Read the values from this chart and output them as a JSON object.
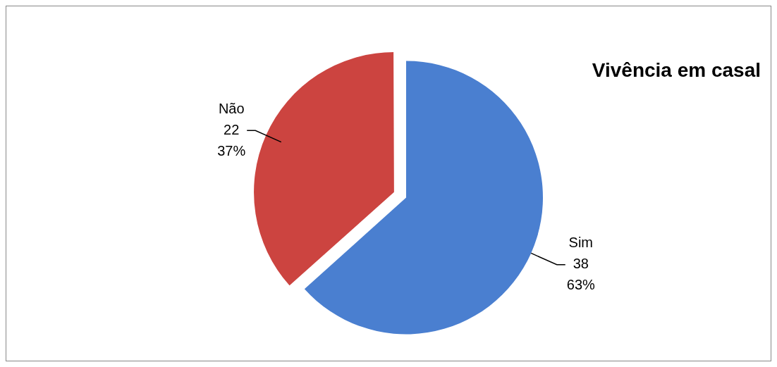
{
  "chart_data": {
    "type": "pie",
    "title": "Vivência em casal",
    "categories": [
      "Sim",
      "Não"
    ],
    "values": [
      38,
      22
    ],
    "colors": [
      "#4a7fd0",
      "#cc4440"
    ],
    "value_labels": [
      "38\n63%",
      "22\n37%"
    ],
    "legend": false
  }
}
